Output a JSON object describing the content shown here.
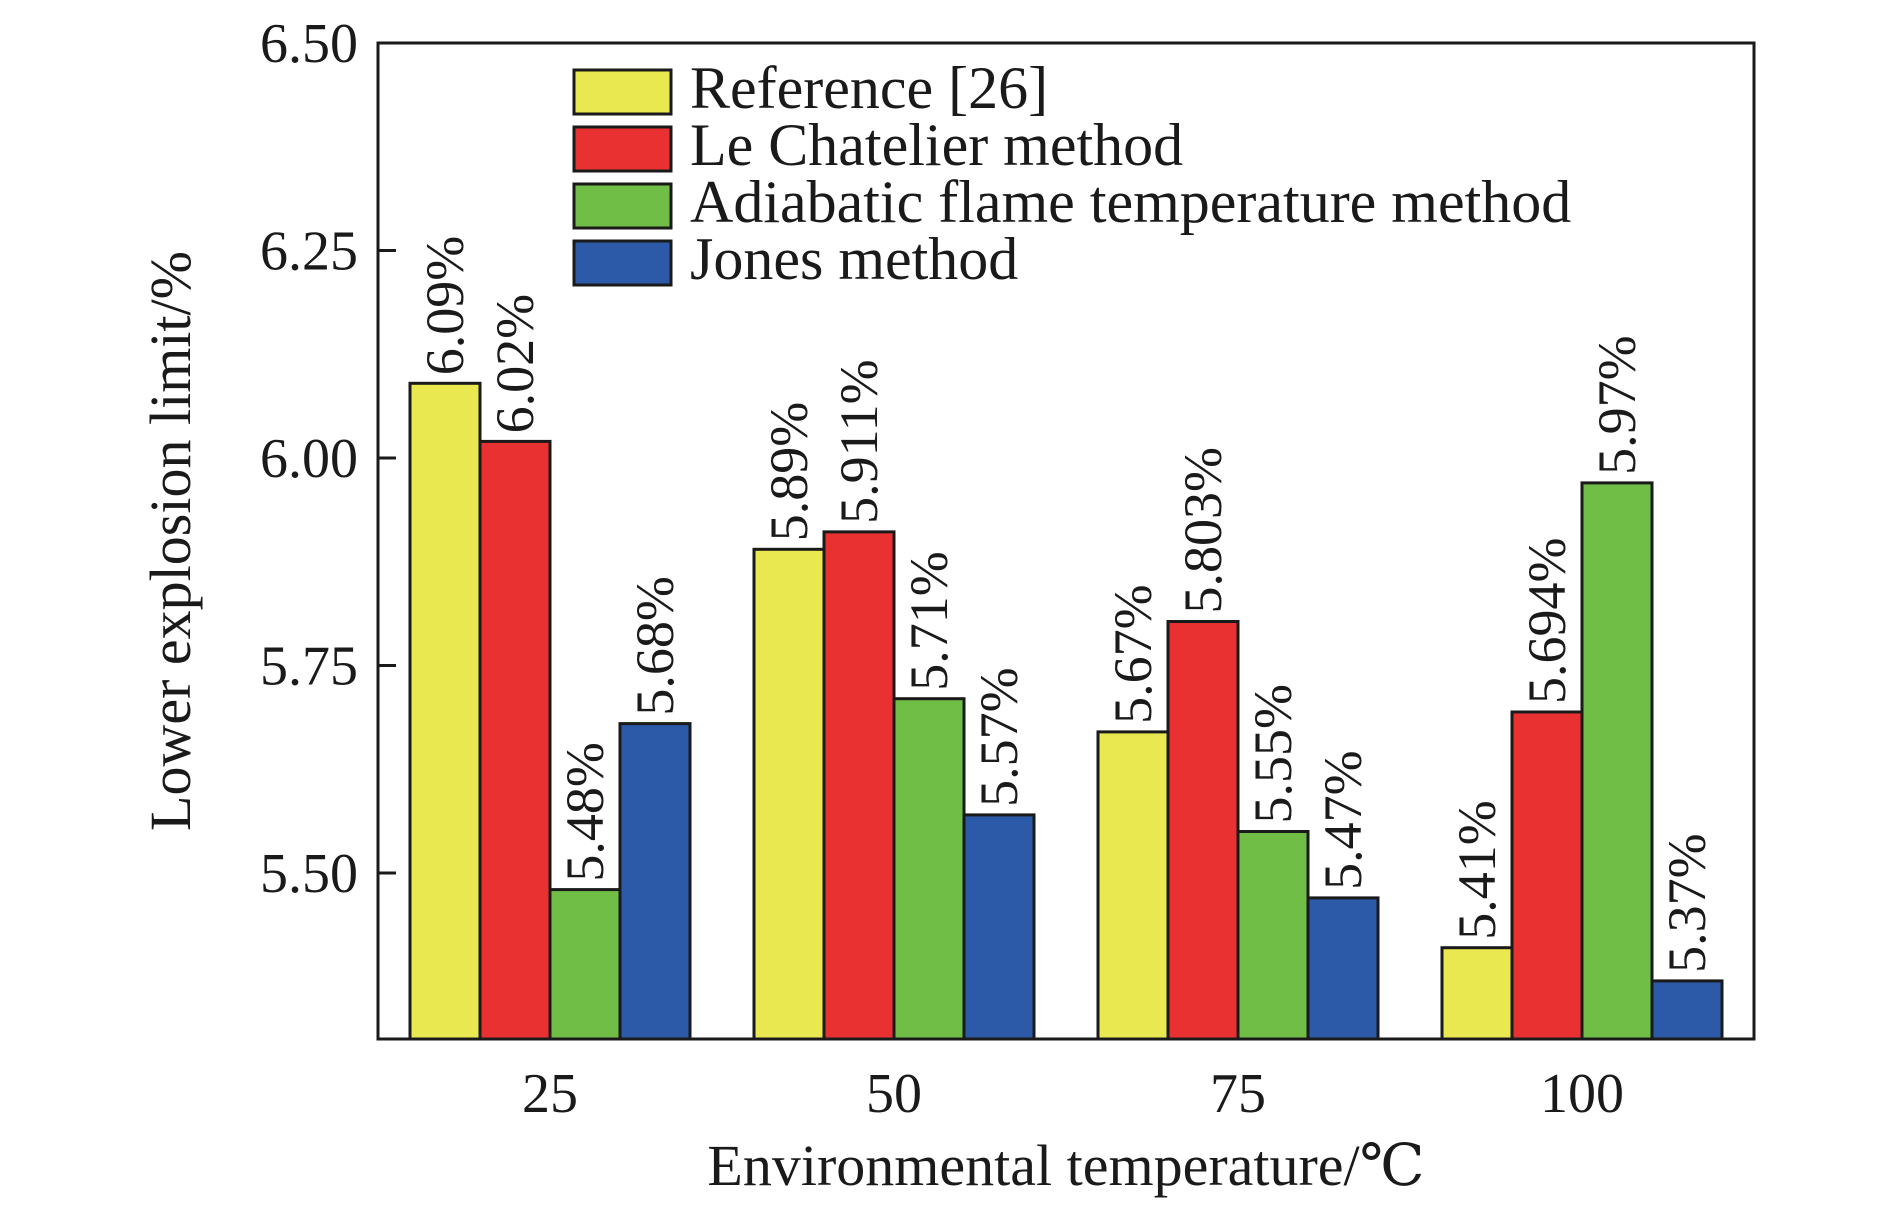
{
  "chart_data": {
    "type": "bar",
    "title": "",
    "xlabel": "Environmental temperature/℃",
    "ylabel": "Lower explosion limit/%",
    "categories": [
      "25",
      "50",
      "75",
      "100"
    ],
    "ylim": [
      5.3,
      6.5
    ],
    "yticks": [
      "5.50",
      "5.75",
      "6.00",
      "6.25",
      "6.50"
    ],
    "ytick_values": [
      5.5,
      5.75,
      6.0,
      6.25,
      6.5
    ],
    "grid": false,
    "legend_position": "top-center",
    "series": [
      {
        "name": "Reference [26]",
        "color": "#EAE850",
        "values": [
          6.09,
          5.89,
          5.67,
          5.41
        ],
        "labels": [
          "6.09%",
          "5.89%",
          "5.67%",
          "5.41%"
        ]
      },
      {
        "name": "Le Chatelier method",
        "color": "#E93131",
        "values": [
          6.02,
          5.911,
          5.803,
          5.694
        ],
        "labels": [
          "6.02%",
          "5.911%",
          "5.803%",
          "5.694%"
        ]
      },
      {
        "name": "Adiabatic flame temperature method",
        "color": "#70BE45",
        "values": [
          5.48,
          5.71,
          5.55,
          5.97
        ],
        "labels": [
          "5.48%",
          "5.71%",
          "5.55%",
          "5.97%"
        ]
      },
      {
        "name": "Jones method",
        "color": "#2C5AA8",
        "values": [
          5.68,
          5.57,
          5.47,
          5.37
        ],
        "labels": [
          "5.68%",
          "5.57%",
          "5.47%",
          "5.37%"
        ]
      }
    ]
  }
}
